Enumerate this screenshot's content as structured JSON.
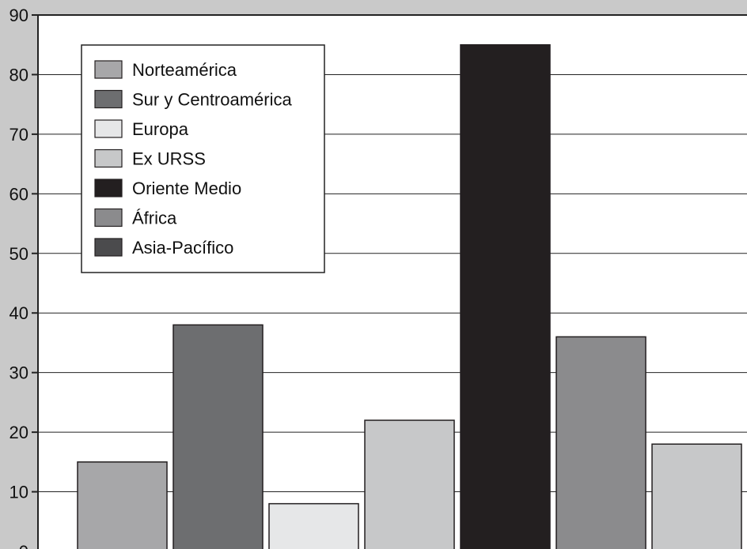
{
  "chart_data": {
    "type": "bar",
    "title": "",
    "xlabel": "",
    "ylabel": "",
    "ylim": [
      0,
      90
    ],
    "yticks": [
      0,
      10,
      20,
      30,
      40,
      50,
      60,
      70,
      80,
      90
    ],
    "grid": true,
    "legend_position": "top-left",
    "categories": [
      "Norteamérica",
      "Sur y Centroamérica",
      "Europa",
      "Ex URSS",
      "Oriente Medio",
      "África",
      "Asia-Pacífico"
    ],
    "values": [
      15,
      38,
      8,
      22,
      85,
      36,
      18
    ],
    "colors": [
      "#a7a7a9",
      "#6d6e70",
      "#e6e7e8",
      "#c7c8c9",
      "#231f20",
      "#8b8b8d",
      "#4b4b4d"
    ],
    "bar_colors": [
      "#a7a7a9",
      "#6d6e70",
      "#e6e7e8",
      "#c7c8c9",
      "#231f20",
      "#8b8b8d",
      "#c7c8c9"
    ],
    "legend": [
      "Norteamérica",
      "Sur y Centroamérica",
      "Europa",
      "Ex URSS",
      "Oriente Medio",
      "África",
      "Asia-Pacífico"
    ]
  }
}
